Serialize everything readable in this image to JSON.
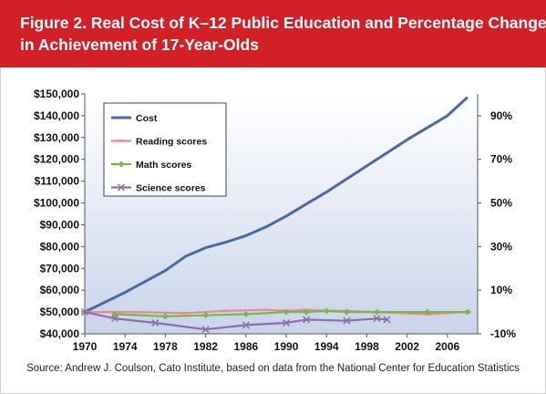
{
  "figure": {
    "title_line1": "Figure 2. Real Cost of K–12 Public Education and Percentage Change",
    "title_line2": "in Achievement of 17-Year-Olds",
    "source": "Source: Andrew J. Coulson, Cato Institute, based on data from the National Center for Education Statistics"
  },
  "colors": {
    "header_bg": "#d31f26",
    "cost": "#4a6aa3",
    "reading": "#e88a8a",
    "math": "#7ab648",
    "science": "#8a6fa8",
    "plot_bg_top": "#ffffff",
    "plot_bg_bottom": "#c9d4ea"
  },
  "chart_data": {
    "type": "line",
    "title": "",
    "xlabel": "",
    "ylabel": "",
    "x_ticks": [
      "1970",
      "1974",
      "1978",
      "1982",
      "1986",
      "1990",
      "1994",
      "1998",
      "2002",
      "2006"
    ],
    "xlim": [
      1970,
      2009
    ],
    "left_axis": {
      "ylim": [
        40000,
        150000
      ],
      "ticks": [
        "$40,000",
        "$50,000",
        "$60,000",
        "$70,000",
        "$80,000",
        "$90,000",
        "$100,000",
        "$110,000",
        "$120,000",
        "$130,000",
        "$140,000",
        "$150,000"
      ]
    },
    "right_axis": {
      "ylim": [
        -10,
        100
      ],
      "ticks": [
        "-10%",
        "10%",
        "30%",
        "50%",
        "70%",
        "90%"
      ],
      "tick_values": [
        -10,
        10,
        30,
        50,
        70,
        90
      ]
    },
    "legend_position": "top-left",
    "series": [
      {
        "name": "Cost",
        "axis": "left",
        "marker": "none",
        "points": [
          [
            1970,
            50000
          ],
          [
            1974,
            59000
          ],
          [
            1978,
            69000
          ],
          [
            1980,
            75500
          ],
          [
            1982,
            79500
          ],
          [
            1984,
            82000
          ],
          [
            1986,
            85000
          ],
          [
            1988,
            89000
          ],
          [
            1990,
            94000
          ],
          [
            1992,
            99500
          ],
          [
            1994,
            105000
          ],
          [
            1996,
            111000
          ],
          [
            1998,
            117000
          ],
          [
            2000,
            123000
          ],
          [
            2002,
            129000
          ],
          [
            2004,
            134500
          ],
          [
            2006,
            140000
          ],
          [
            2008,
            148500
          ]
        ]
      },
      {
        "name": "Reading scores",
        "axis": "right",
        "marker": "dash",
        "points": [
          [
            1970,
            0
          ],
          [
            1975,
            0
          ],
          [
            1980,
            -0.5
          ],
          [
            1984,
            0.5
          ],
          [
            1988,
            1
          ],
          [
            1990,
            0.5
          ],
          [
            1992,
            1
          ],
          [
            1994,
            0.5
          ],
          [
            1996,
            0.5
          ],
          [
            1999,
            0
          ],
          [
            2004,
            -1
          ],
          [
            2008,
            0
          ]
        ]
      },
      {
        "name": "Math scores",
        "axis": "right",
        "marker": "diamond",
        "points": [
          [
            1973,
            -1
          ],
          [
            1978,
            -2
          ],
          [
            1982,
            -1.5
          ],
          [
            1986,
            -1
          ],
          [
            1990,
            0
          ],
          [
            1992,
            0
          ],
          [
            1994,
            0.5
          ],
          [
            1996,
            0
          ],
          [
            1999,
            0
          ],
          [
            2004,
            0
          ],
          [
            2008,
            0
          ]
        ]
      },
      {
        "name": "Science scores",
        "axis": "right",
        "marker": "x",
        "points": [
          [
            1970,
            0
          ],
          [
            1973,
            -3
          ],
          [
            1977,
            -5
          ],
          [
            1982,
            -8
          ],
          [
            1986,
            -6
          ],
          [
            1990,
            -5
          ],
          [
            1992,
            -3.5
          ],
          [
            1996,
            -4
          ],
          [
            1999,
            -3
          ],
          [
            2000,
            -3.5
          ]
        ]
      }
    ]
  }
}
